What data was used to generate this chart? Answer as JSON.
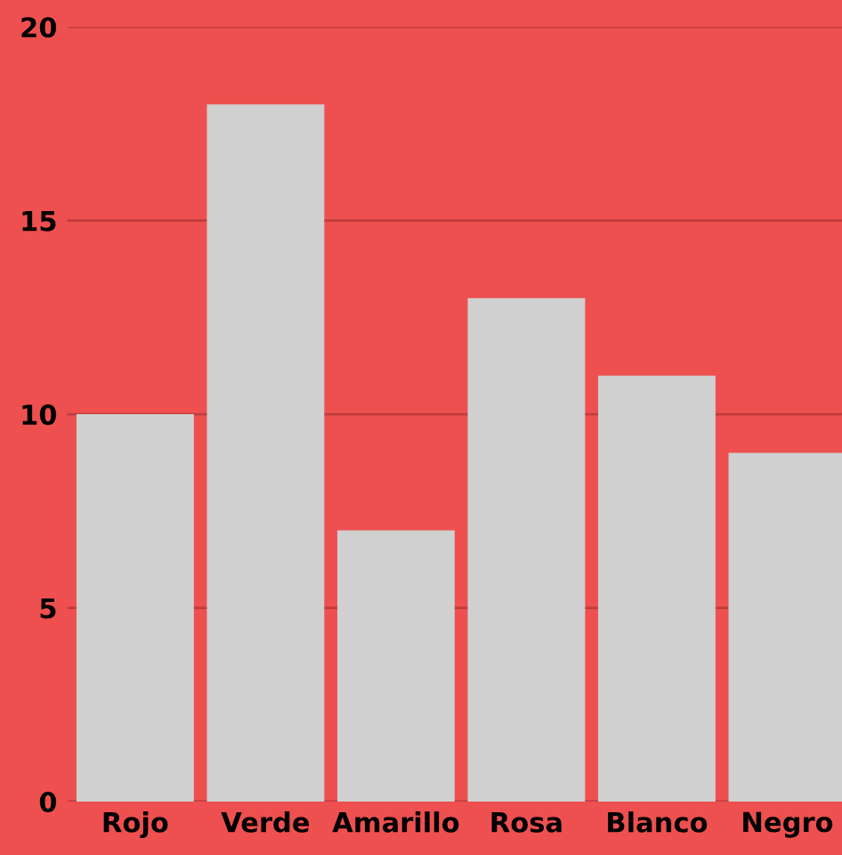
{
  "chart_data": {
    "type": "bar",
    "categories": [
      "Rojo",
      "Verde",
      "Amarillo",
      "Rosa",
      "Blanco",
      "Negro"
    ],
    "values": [
      10,
      18,
      7,
      13,
      11,
      9
    ],
    "color": "#d0d0d0",
    "ylim": [
      0,
      20
    ],
    "yticks": [
      0,
      5,
      10,
      15,
      20
    ],
    "grid": "y"
  }
}
